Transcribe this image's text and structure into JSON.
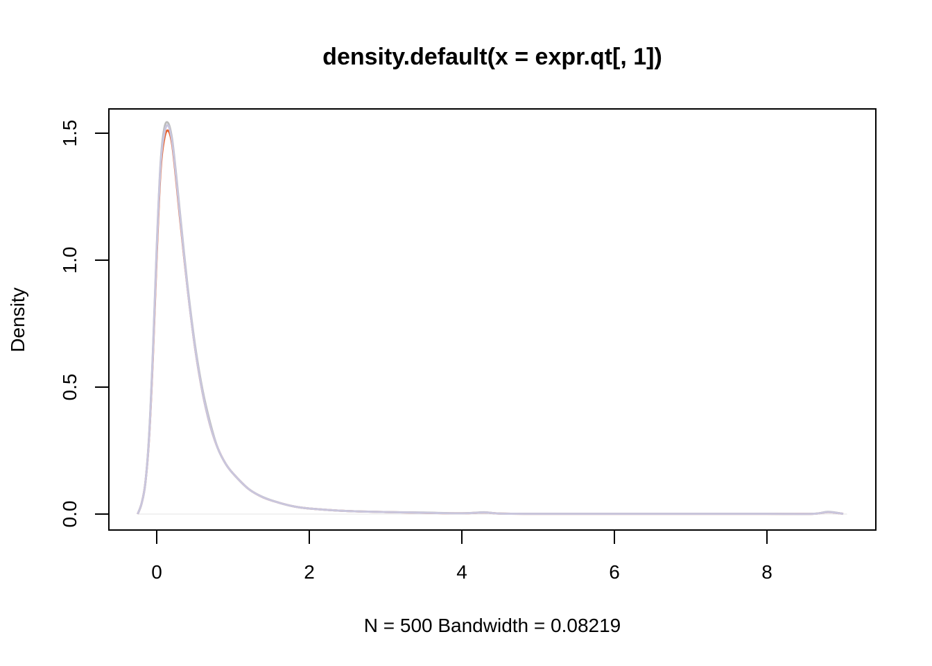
{
  "chart_data": {
    "type": "line",
    "title": "density.default(x = expr.qt[, 1])",
    "xlabel": "N = 500   Bandwidth = 0.08219",
    "ylabel": "Density",
    "xlim": [
      -0.3,
      9.05
    ],
    "ylim": [
      0,
      1.55
    ],
    "x_ticks": [
      {
        "value": 0,
        "label": "0"
      },
      {
        "value": 2,
        "label": "2"
      },
      {
        "value": 4,
        "label": "4"
      },
      {
        "value": 6,
        "label": "6"
      },
      {
        "value": 8,
        "label": "8"
      }
    ],
    "y_ticks": [
      {
        "value": 0,
        "label": "0.0"
      },
      {
        "value": 0.5,
        "label": "0.5"
      },
      {
        "value": 1.0,
        "label": "1.0"
      },
      {
        "value": 1.5,
        "label": "1.5"
      }
    ],
    "grid": false,
    "legend": "none",
    "series": [
      {
        "color": "#e8602c",
        "x": [
          -0.25,
          -0.2,
          -0.15,
          -0.1,
          -0.05,
          0,
          0.05,
          0.1,
          0.15,
          0.2,
          0.25,
          0.3,
          0.4,
          0.5,
          0.6,
          0.7,
          0.8,
          0.9,
          1.0,
          1.2,
          1.4,
          1.6,
          1.8,
          2.0,
          2.5,
          3.0,
          3.5,
          4.0,
          4.3,
          4.5,
          5,
          6,
          7,
          8,
          8.6,
          8.8,
          9.0
        ],
        "y": [
          0,
          0.04,
          0.12,
          0.3,
          0.62,
          1.02,
          1.35,
          1.48,
          1.51,
          1.46,
          1.33,
          1.18,
          0.9,
          0.66,
          0.48,
          0.35,
          0.26,
          0.2,
          0.16,
          0.1,
          0.065,
          0.045,
          0.03,
          0.022,
          0.012,
          0.008,
          0.005,
          0.003,
          0.006,
          0.002,
          0.001,
          0.001,
          0.001,
          0.001,
          0.001,
          0.008,
          0.001
        ]
      },
      {
        "color": "#bdbdbd",
        "x": [
          -0.25,
          -0.2,
          -0.15,
          -0.1,
          -0.05,
          0,
          0.05,
          0.1,
          0.15,
          0.2,
          0.25,
          0.3,
          0.4,
          0.5,
          0.6,
          0.7,
          0.8,
          0.9,
          1.0,
          1.2,
          1.4,
          1.6,
          1.8,
          2.0,
          2.5,
          3.0,
          3.5,
          4.0,
          4.3,
          4.5,
          5,
          6,
          7,
          8,
          8.6,
          8.8,
          9.0
        ],
        "y": [
          0,
          0.04,
          0.12,
          0.31,
          0.64,
          1.05,
          1.38,
          1.52,
          1.54,
          1.48,
          1.35,
          1.2,
          0.91,
          0.67,
          0.49,
          0.36,
          0.26,
          0.2,
          0.16,
          0.1,
          0.066,
          0.045,
          0.03,
          0.022,
          0.012,
          0.008,
          0.006,
          0.003,
          0.007,
          0.002,
          0.001,
          0.001,
          0.001,
          0.001,
          0.001,
          0.009,
          0.001
        ]
      },
      {
        "color": "#c9c6dd",
        "x": [
          -0.25,
          -0.2,
          -0.15,
          -0.1,
          -0.05,
          0,
          0.05,
          0.1,
          0.15,
          0.2,
          0.25,
          0.3,
          0.4,
          0.5,
          0.6,
          0.7,
          0.8,
          0.9,
          1.0,
          1.2,
          1.4,
          1.6,
          1.8,
          2.0,
          2.5,
          3.0,
          3.5,
          4.0,
          4.3,
          4.5,
          5,
          6,
          7,
          8,
          8.6,
          8.8,
          9.0
        ],
        "y": [
          0,
          0.04,
          0.12,
          0.3,
          0.63,
          1.04,
          1.37,
          1.5,
          1.53,
          1.47,
          1.34,
          1.19,
          0.9,
          0.66,
          0.48,
          0.35,
          0.26,
          0.2,
          0.16,
          0.1,
          0.065,
          0.045,
          0.03,
          0.022,
          0.012,
          0.008,
          0.005,
          0.003,
          0.006,
          0.002,
          0.001,
          0.001,
          0.001,
          0.001,
          0.001,
          0.008,
          0.001
        ]
      }
    ]
  }
}
